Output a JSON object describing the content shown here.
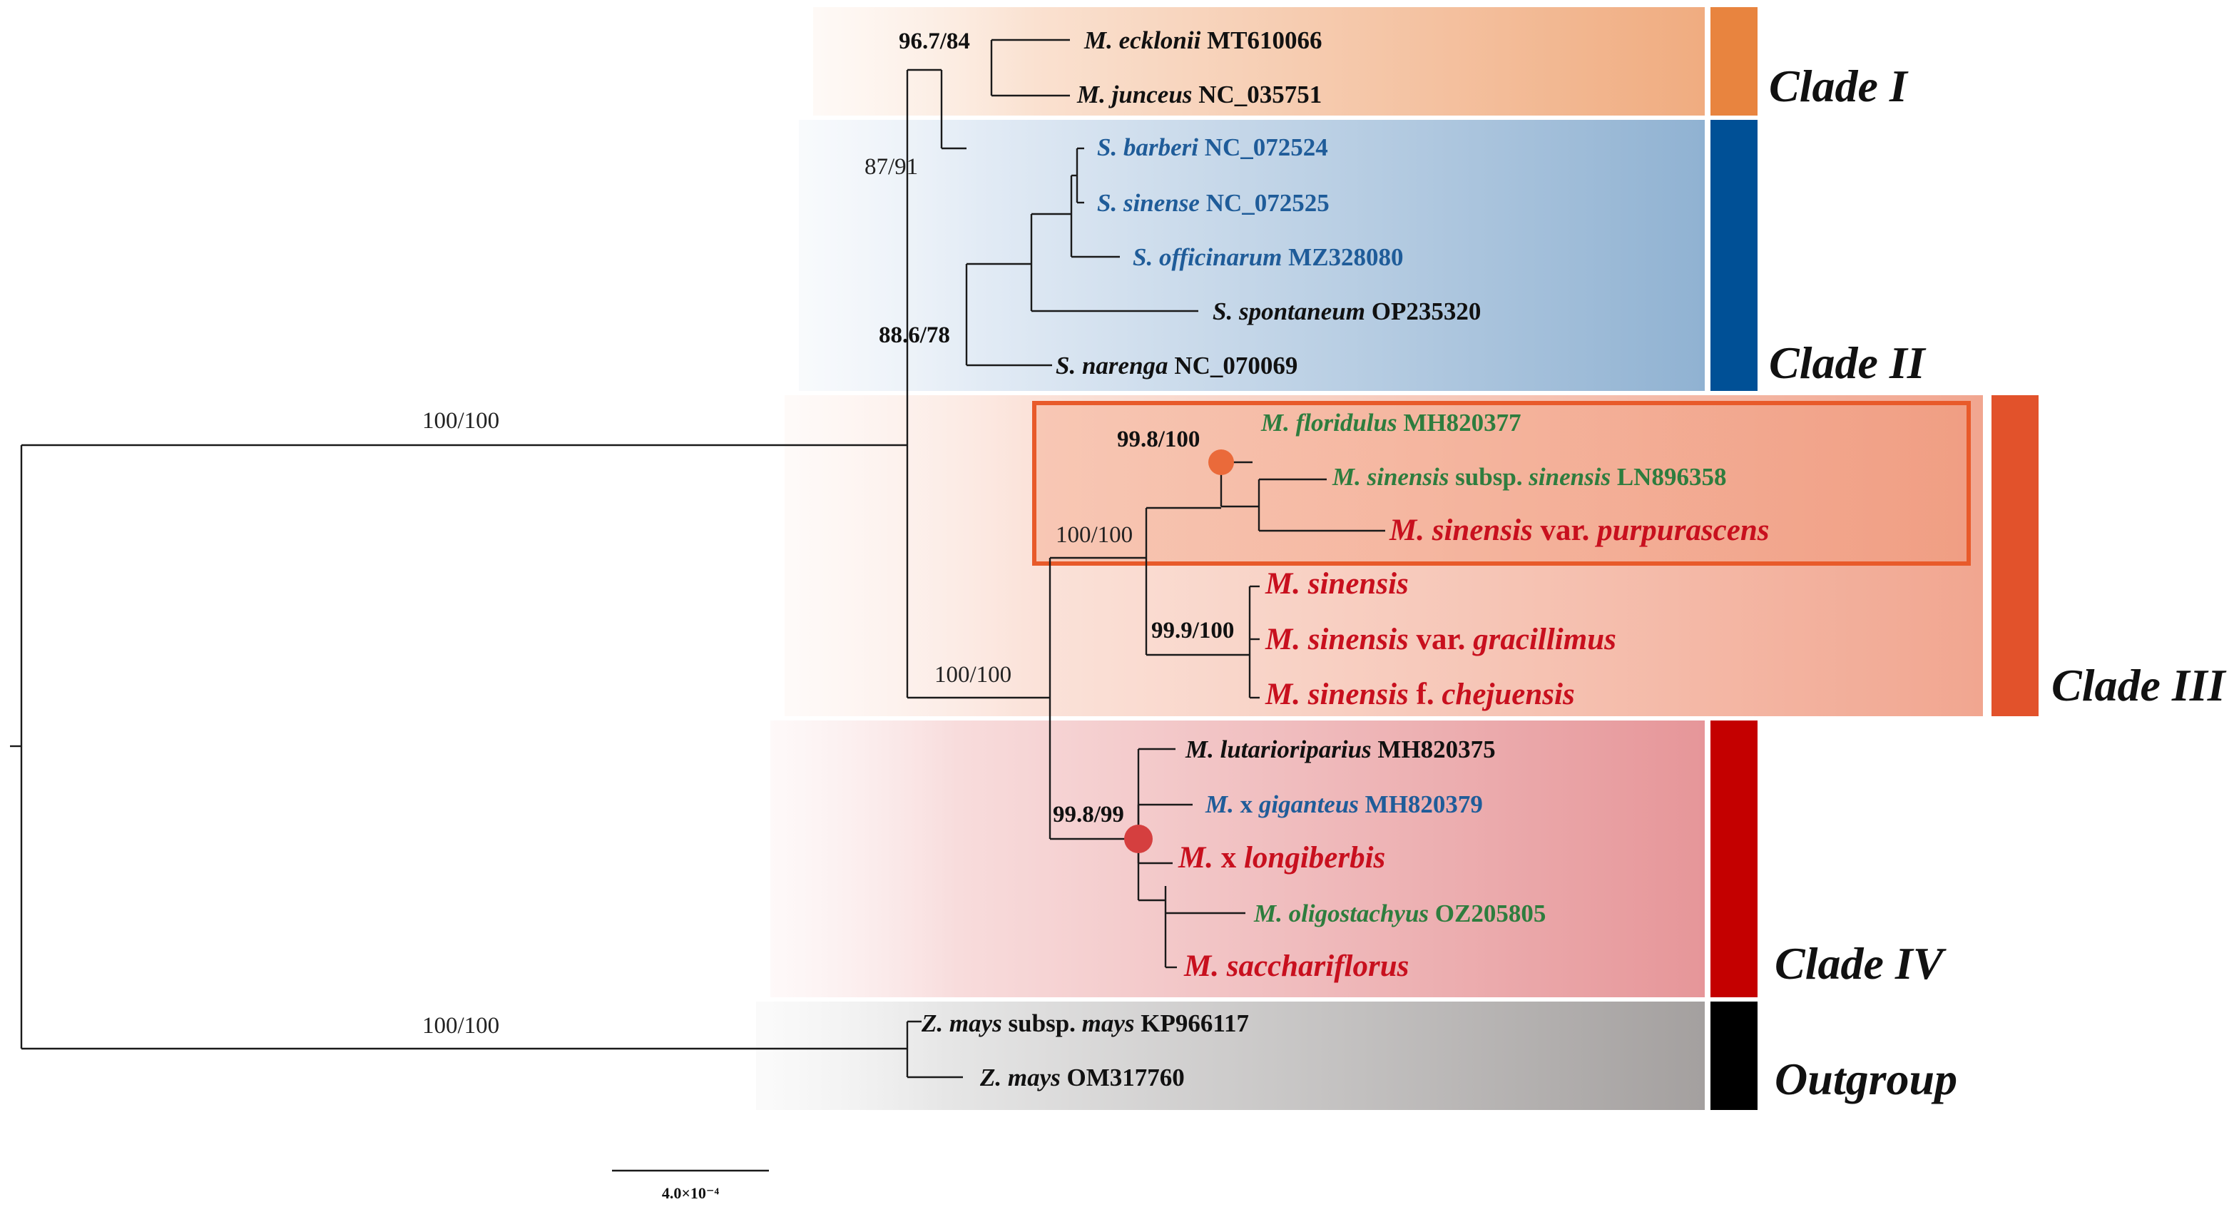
{
  "colors": {
    "black": "#111111",
    "blue": "#1f5c99",
    "green": "#2e7d3e",
    "red": "#c8101e",
    "clade_I": "#e8843f",
    "clade_II": "#005096",
    "clade_III": "#e2522b",
    "clade_IV": "#c40000",
    "outgroup": "#000000",
    "highlight_box": "#e85a2a"
  },
  "clades": [
    {
      "label": "Clade I"
    },
    {
      "label": "Clade II"
    },
    {
      "label": "Clade III"
    },
    {
      "label": "Clade IV"
    },
    {
      "label": "Outgroup"
    }
  ],
  "taxa": [
    {
      "id": "ecklonii",
      "color": "black",
      "parts": [
        {
          "t": "M. ecklonii",
          "i": true
        },
        {
          "t": " MT610066"
        }
      ]
    },
    {
      "id": "junceus",
      "color": "black",
      "parts": [
        {
          "t": "M. junceus",
          "i": true
        },
        {
          "t": " NC_035751"
        }
      ]
    },
    {
      "id": "barberi",
      "color": "blue",
      "parts": [
        {
          "t": "S. barberi",
          "i": true
        },
        {
          "t": " NC_072524"
        }
      ]
    },
    {
      "id": "sinense",
      "color": "blue",
      "parts": [
        {
          "t": "S. sinense",
          "i": true
        },
        {
          "t": " NC_072525"
        }
      ]
    },
    {
      "id": "officinarum",
      "color": "blue",
      "parts": [
        {
          "t": "S. officinarum",
          "i": true
        },
        {
          "t": " MZ328080"
        }
      ]
    },
    {
      "id": "spontaneum",
      "color": "black",
      "parts": [
        {
          "t": "S. spontaneum",
          "i": true
        },
        {
          "t": " OP235320"
        }
      ]
    },
    {
      "id": "narenga",
      "color": "black",
      "parts": [
        {
          "t": "S. narenga",
          "i": true
        },
        {
          "t": " NC_070069"
        }
      ]
    },
    {
      "id": "floridulus",
      "color": "green",
      "parts": [
        {
          "t": "M. floridulus",
          "i": true
        },
        {
          "t": " MH820377"
        }
      ]
    },
    {
      "id": "sinensis_subsp",
      "color": "green",
      "parts": [
        {
          "t": "M. sinensis",
          "i": true
        },
        {
          "t": " subsp. "
        },
        {
          "t": "sinensis",
          "i": true
        },
        {
          "t": " LN896358"
        }
      ]
    },
    {
      "id": "purpurascens",
      "color": "red",
      "big": true,
      "parts": [
        {
          "t": "M. sinensis",
          "i": true
        },
        {
          "t": " var. "
        },
        {
          "t": "purpurascens",
          "i": true
        }
      ]
    },
    {
      "id": "sinensis",
      "color": "red",
      "big": true,
      "parts": [
        {
          "t": "M. sinensis",
          "i": true
        }
      ]
    },
    {
      "id": "gracillimus",
      "color": "red",
      "big": true,
      "parts": [
        {
          "t": "M. sinensis",
          "i": true
        },
        {
          "t": " var. "
        },
        {
          "t": "gracillimus",
          "i": true
        }
      ]
    },
    {
      "id": "chejuensis",
      "color": "red",
      "big": true,
      "parts": [
        {
          "t": "M. sinensis",
          "i": true
        },
        {
          "t": " f. "
        },
        {
          "t": "chejuensis",
          "i": true
        }
      ]
    },
    {
      "id": "lutarioriparius",
      "color": "black",
      "parts": [
        {
          "t": "M. lutarioriparius",
          "i": true
        },
        {
          "t": " MH820375"
        }
      ]
    },
    {
      "id": "giganteus",
      "color": "blue",
      "parts": [
        {
          "t": "M.",
          "i": true
        },
        {
          "t": " x "
        },
        {
          "t": "giganteus",
          "i": true
        },
        {
          "t": " MH820379"
        }
      ]
    },
    {
      "id": "longiberbis",
      "color": "red",
      "big": true,
      "parts": [
        {
          "t": "M.",
          "i": true
        },
        {
          "t": " x "
        },
        {
          "t": "longiberbis",
          "i": true
        }
      ]
    },
    {
      "id": "oligostachyus",
      "color": "green",
      "parts": [
        {
          "t": "M. oligostachyus",
          "i": true
        },
        {
          "t": " OZ205805"
        }
      ]
    },
    {
      "id": "sacchariflorus",
      "color": "red",
      "big": true,
      "parts": [
        {
          "t": "M. sacchariflorus",
          "i": true
        }
      ]
    },
    {
      "id": "zmays_subsp",
      "color": "black",
      "parts": [
        {
          "t": "Z. mays",
          "i": true
        },
        {
          "t": " subsp. "
        },
        {
          "t": "mays",
          "i": true
        },
        {
          "t": " KP966117"
        }
      ]
    },
    {
      "id": "zmays",
      "color": "black",
      "parts": [
        {
          "t": "Z. mays",
          "i": true
        },
        {
          "t": " OM317760"
        }
      ]
    }
  ],
  "support": [
    {
      "id": "clade_I_node",
      "label": "96.7/84",
      "bold": true
    },
    {
      "id": "clade_I_II_node",
      "label": "87/91",
      "bold": false
    },
    {
      "id": "clade_II_node",
      "label": "88.6/78",
      "bold": true
    },
    {
      "id": "ingroup_root",
      "label": "100/100",
      "bold": false
    },
    {
      "id": "floridulus_node",
      "label": "99.8/100",
      "bold": true
    },
    {
      "id": "sinensis_group_node",
      "label": "100/100",
      "bold": false
    },
    {
      "id": "sinensis_trio_node",
      "label": "99.9/100",
      "bold": true
    },
    {
      "id": "clade_III_IV_node",
      "label": "100/100",
      "bold": false
    },
    {
      "id": "clade_IV_node",
      "label": "99.8/99",
      "bold": true
    },
    {
      "id": "outgroup_branch",
      "label": "100/100",
      "bold": false
    }
  ],
  "scale_bar": {
    "label": "4.0×10⁻⁴"
  }
}
